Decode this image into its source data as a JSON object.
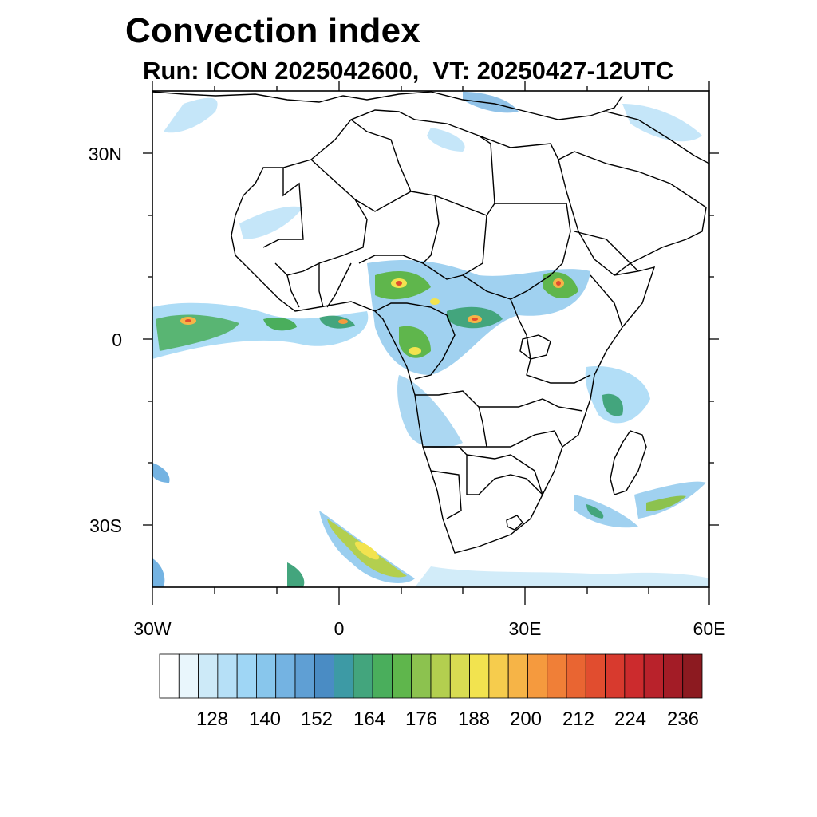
{
  "title": "Convection index",
  "subtitle": "Run: ICON 2025042600,  VT: 20250427-12UTC",
  "axes": {
    "y_labels": [
      "30N",
      "0",
      "30S"
    ],
    "x_labels": [
      "30W",
      "0",
      "30E",
      "60E"
    ]
  },
  "colorbar": {
    "labels": [
      "128",
      "140",
      "152",
      "164",
      "176",
      "188",
      "200",
      "212",
      "224",
      "236"
    ],
    "colors": [
      "#ffffff",
      "#e9f6fc",
      "#cdeaf8",
      "#b6e0f7",
      "#9fd6f5",
      "#88c6ec",
      "#74b3e2",
      "#5f9fd4",
      "#4a8cc4",
      "#3d9aa5",
      "#43a57d",
      "#4aae5c",
      "#5fb64c",
      "#8cc24f",
      "#b3cf4f",
      "#d8dc52",
      "#f2e34f",
      "#f6cc4d",
      "#f6b447",
      "#f59a3e",
      "#f07f37",
      "#e96532",
      "#e14d2f",
      "#d83a2e",
      "#cc2b2d",
      "#b9222b",
      "#a31c26",
      "#8c1a20"
    ]
  }
}
